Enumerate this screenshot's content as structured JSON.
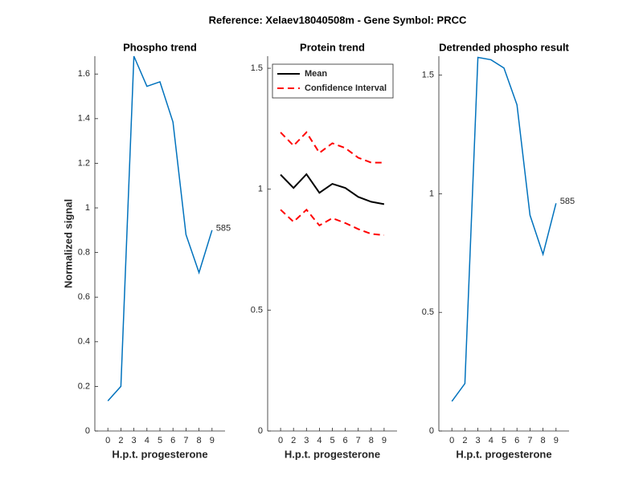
{
  "title": "Reference:  Xelaev18040508m - Gene Symbol:  PRCC",
  "chart_data": [
    {
      "type": "line",
      "title": "Phospho trend",
      "x_label": "H.p.t. progesterone",
      "y_label": "Normalized signal",
      "x": [
        1,
        2,
        3,
        4,
        5,
        6,
        7,
        8,
        9
      ],
      "series": [
        {
          "color": "#0072bd",
          "values": [
            0.135,
            0.2,
            1.68,
            1.545,
            1.565,
            1.385,
            0.88,
            0.71,
            0.9
          ]
        }
      ],
      "annotation": "585",
      "xlim": [
        0,
        10
      ],
      "xticks": [
        {
          "value": 1,
          "label": "0"
        },
        {
          "value": 2,
          "label": "2"
        },
        {
          "value": 3,
          "label": "3"
        },
        {
          "value": 4,
          "label": "4"
        },
        {
          "value": 5,
          "label": "5"
        },
        {
          "value": 6,
          "label": "6"
        },
        {
          "value": 7,
          "label": "7"
        },
        {
          "value": 8,
          "label": "8"
        },
        {
          "value": 9,
          "label": "9"
        }
      ],
      "ylim": [
        0,
        1.68
      ],
      "yticks": [
        0,
        0.2,
        0.4,
        0.6,
        0.8,
        1,
        1.2,
        1.4,
        1.6
      ]
    },
    {
      "type": "line",
      "title": "Protein trend",
      "x_label": "H.p.t. progesterone",
      "x": [
        1,
        2,
        3,
        4,
        5,
        6,
        7,
        8,
        9
      ],
      "series": [
        {
          "name": "Mean",
          "color": "#000000",
          "values": [
            1.06,
            1.005,
            1.062,
            0.985,
            1.022,
            1.005,
            0.968,
            0.948,
            0.938
          ]
        },
        {
          "name": "Confidence Interval",
          "color": "#ff0000",
          "dashed": true,
          "values": [
            1.235,
            1.18,
            1.235,
            1.15,
            1.19,
            1.17,
            1.13,
            1.11,
            1.11
          ]
        },
        {
          "color": "#ff0000",
          "dashed": true,
          "values": [
            0.915,
            0.865,
            0.915,
            0.85,
            0.88,
            0.86,
            0.835,
            0.815,
            0.81
          ]
        }
      ],
      "legend": "upper left",
      "xlim": [
        0,
        10
      ],
      "xticks": [
        {
          "value": 1,
          "label": "0"
        },
        {
          "value": 2,
          "label": "2"
        },
        {
          "value": 3,
          "label": "3"
        },
        {
          "value": 4,
          "label": "4"
        },
        {
          "value": 5,
          "label": "5"
        },
        {
          "value": 6,
          "label": "6"
        },
        {
          "value": 7,
          "label": "7"
        },
        {
          "value": 8,
          "label": "8"
        },
        {
          "value": 9,
          "label": "9"
        }
      ],
      "ylim": [
        0,
        1.55
      ],
      "yticks": [
        0,
        0.5,
        1,
        1.5
      ]
    },
    {
      "type": "line",
      "title": "Detrended phospho result",
      "x_label": "H.p.t. progesterone",
      "x": [
        1,
        2,
        3,
        4,
        5,
        6,
        7,
        8,
        9
      ],
      "series": [
        {
          "color": "#0072bd",
          "values": [
            0.125,
            0.2,
            1.575,
            1.565,
            1.53,
            1.375,
            0.91,
            0.745,
            0.96
          ]
        }
      ],
      "annotation": "585",
      "xlim": [
        0,
        10
      ],
      "xticks": [
        {
          "value": 1,
          "label": "0"
        },
        {
          "value": 2,
          "label": "2"
        },
        {
          "value": 3,
          "label": "3"
        },
        {
          "value": 4,
          "label": "4"
        },
        {
          "value": 5,
          "label": "5"
        },
        {
          "value": 6,
          "label": "6"
        },
        {
          "value": 7,
          "label": "7"
        },
        {
          "value": 8,
          "label": "8"
        },
        {
          "value": 9,
          "label": "9"
        }
      ],
      "ylim": [
        0,
        1.58
      ],
      "yticks": [
        0,
        0.5,
        1,
        1.5
      ]
    }
  ]
}
